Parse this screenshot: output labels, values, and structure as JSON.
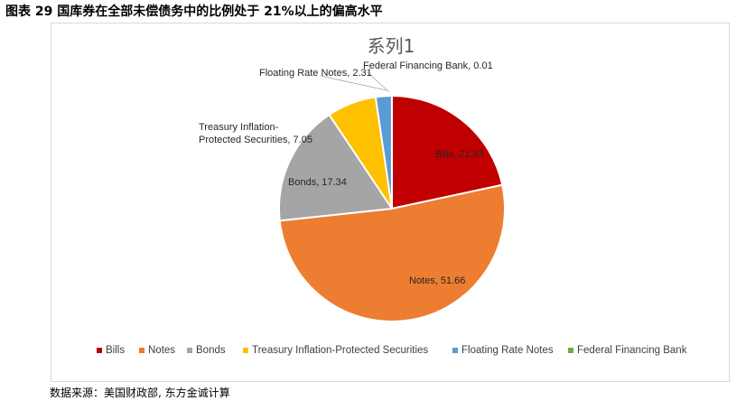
{
  "figure": {
    "title": "图表 29  国库券在全部未偿债务中的比例处于 21%以上的偏高水平",
    "source": "数据来源：美国财政部, 东方金诚计算"
  },
  "chart_data": {
    "type": "pie",
    "title": "系列1",
    "legend_position": "bottom",
    "slices": [
      {
        "label": "Bills",
        "value": 21.63,
        "color": "#c00000",
        "label_text": "Bills, 21.63"
      },
      {
        "label": "Notes",
        "value": 51.66,
        "color": "#ed7d31",
        "label_text": "Notes, 51.66"
      },
      {
        "label": "Bonds",
        "value": 17.34,
        "color": "#a5a5a5",
        "label_text": "Bonds, 17.34"
      },
      {
        "label": "Treasury Inflation-Protected Securities",
        "value": 7.05,
        "color": "#ffc000",
        "label_lines": [
          "Treasury Inflation-",
          "Protected Securities, 7.05"
        ]
      },
      {
        "label": "Floating Rate Notes",
        "value": 2.31,
        "color": "#5b9bd5",
        "label_text": "Floating Rate Notes, 2.31"
      },
      {
        "label": "Federal Financing Bank",
        "value": 0.01,
        "color": "#70ad47",
        "label_text": "Federal Financing Bank, 0.01"
      }
    ]
  }
}
